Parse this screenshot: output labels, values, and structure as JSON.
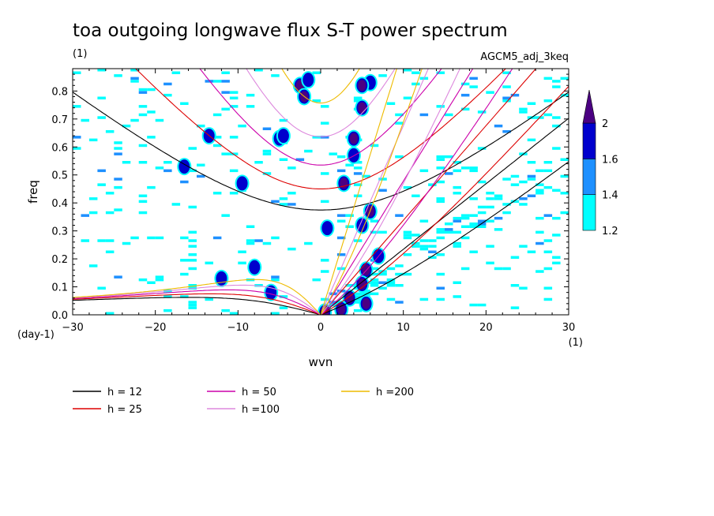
{
  "chart_data": {
    "type": "heatmap",
    "title": "toa outgoing longwave flux S-T power spectrum",
    "subtitle_left": "(1)",
    "subtitle_right": "AGCM5_adj_3keq",
    "xlabel": "wvn",
    "ylabel": "freq",
    "x_unit": "(1)",
    "y_unit": "(day-1)",
    "xlim": [
      -30,
      30
    ],
    "ylim": [
      0,
      0.88
    ],
    "xticks": [
      -30,
      -20,
      -10,
      0,
      10,
      20,
      30
    ],
    "xtick_labels": [
      "−30",
      "−20",
      "−10",
      "0",
      "10",
      "20",
      "30"
    ],
    "yticks": [
      0.0,
      0.1,
      0.2,
      0.3,
      0.4,
      0.5,
      0.6,
      0.7,
      0.8
    ],
    "ytick_labels": [
      "0.0",
      "0.1",
      "0.2",
      "0.3",
      "0.4",
      "0.5",
      "0.6",
      "0.7",
      "0.8"
    ],
    "colorbar": {
      "levels": [
        1.2,
        1.4,
        1.6,
        2
      ],
      "level_labels": [
        "1.2",
        "1.4",
        "1.6",
        "2"
      ],
      "colors": [
        "#00ffff",
        "#1e90ff",
        "#0000cd",
        "#4b0082"
      ],
      "extend": "max"
    },
    "dispersion_curves": [
      {
        "label": "h = 12",
        "h": 12,
        "color": "#000000"
      },
      {
        "label": "h = 25",
        "h": 25,
        "color": "#dd0000"
      },
      {
        "label": "h = 50",
        "h": 50,
        "color": "#cc00aa"
      },
      {
        "label": "h =100",
        "h": 100,
        "color": "#dd88dd"
      },
      {
        "label": "h =200",
        "h": 200,
        "color": "#eebb00"
      }
    ],
    "signal_blobs": [
      {
        "x": -2.5,
        "y": 0.82,
        "level": 2
      },
      {
        "x": -2.0,
        "y": 0.78,
        "level": 2
      },
      {
        "x": -1.5,
        "y": 0.84,
        "level": 1.6
      },
      {
        "x": 6.0,
        "y": 0.83,
        "level": 1.6
      },
      {
        "x": 5.0,
        "y": 0.82,
        "level": 2
      },
      {
        "x": 5.0,
        "y": 0.74,
        "level": 2
      },
      {
        "x": 4.0,
        "y": 0.63,
        "level": 2
      },
      {
        "x": 4.0,
        "y": 0.57,
        "level": 1.6
      },
      {
        "x": 2.8,
        "y": 0.47,
        "level": 2
      },
      {
        "x": 6.0,
        "y": 0.37,
        "level": 2
      },
      {
        "x": 5.0,
        "y": 0.32,
        "level": 1.6
      },
      {
        "x": 7.0,
        "y": 0.21,
        "level": 1.6
      },
      {
        "x": 5.5,
        "y": 0.16,
        "level": 2
      },
      {
        "x": 5.0,
        "y": 0.11,
        "level": 2
      },
      {
        "x": 3.5,
        "y": 0.06,
        "level": 2
      },
      {
        "x": 5.5,
        "y": 0.04,
        "level": 2
      },
      {
        "x": 2.5,
        "y": 0.02,
        "level": 2
      },
      {
        "x": 0.5,
        "y": 0.01,
        "level": 2
      },
      {
        "x": -13.5,
        "y": 0.64,
        "level": 1.6
      },
      {
        "x": -5.0,
        "y": 0.63,
        "level": 1.6
      },
      {
        "x": -9.5,
        "y": 0.47,
        "level": 1.6
      },
      {
        "x": -16.5,
        "y": 0.53,
        "level": 1.6
      },
      {
        "x": -4.5,
        "y": 0.64,
        "level": 1.6
      },
      {
        "x": 0.8,
        "y": 0.31,
        "level": 1.6
      },
      {
        "x": -12.0,
        "y": 0.13,
        "level": 1.6
      },
      {
        "x": -8.0,
        "y": 0.17,
        "level": 1.6
      },
      {
        "x": -6.0,
        "y": 0.08,
        "level": 1.6
      }
    ]
  },
  "legend": [
    {
      "label": "h = 12",
      "color": "#000000"
    },
    {
      "label": "h = 25",
      "color": "#dd0000"
    },
    {
      "label": "h = 50",
      "color": "#cc00aa"
    },
    {
      "label": "h =100",
      "color": "#dd88dd"
    },
    {
      "label": "h =200",
      "color": "#eebb00"
    }
  ]
}
